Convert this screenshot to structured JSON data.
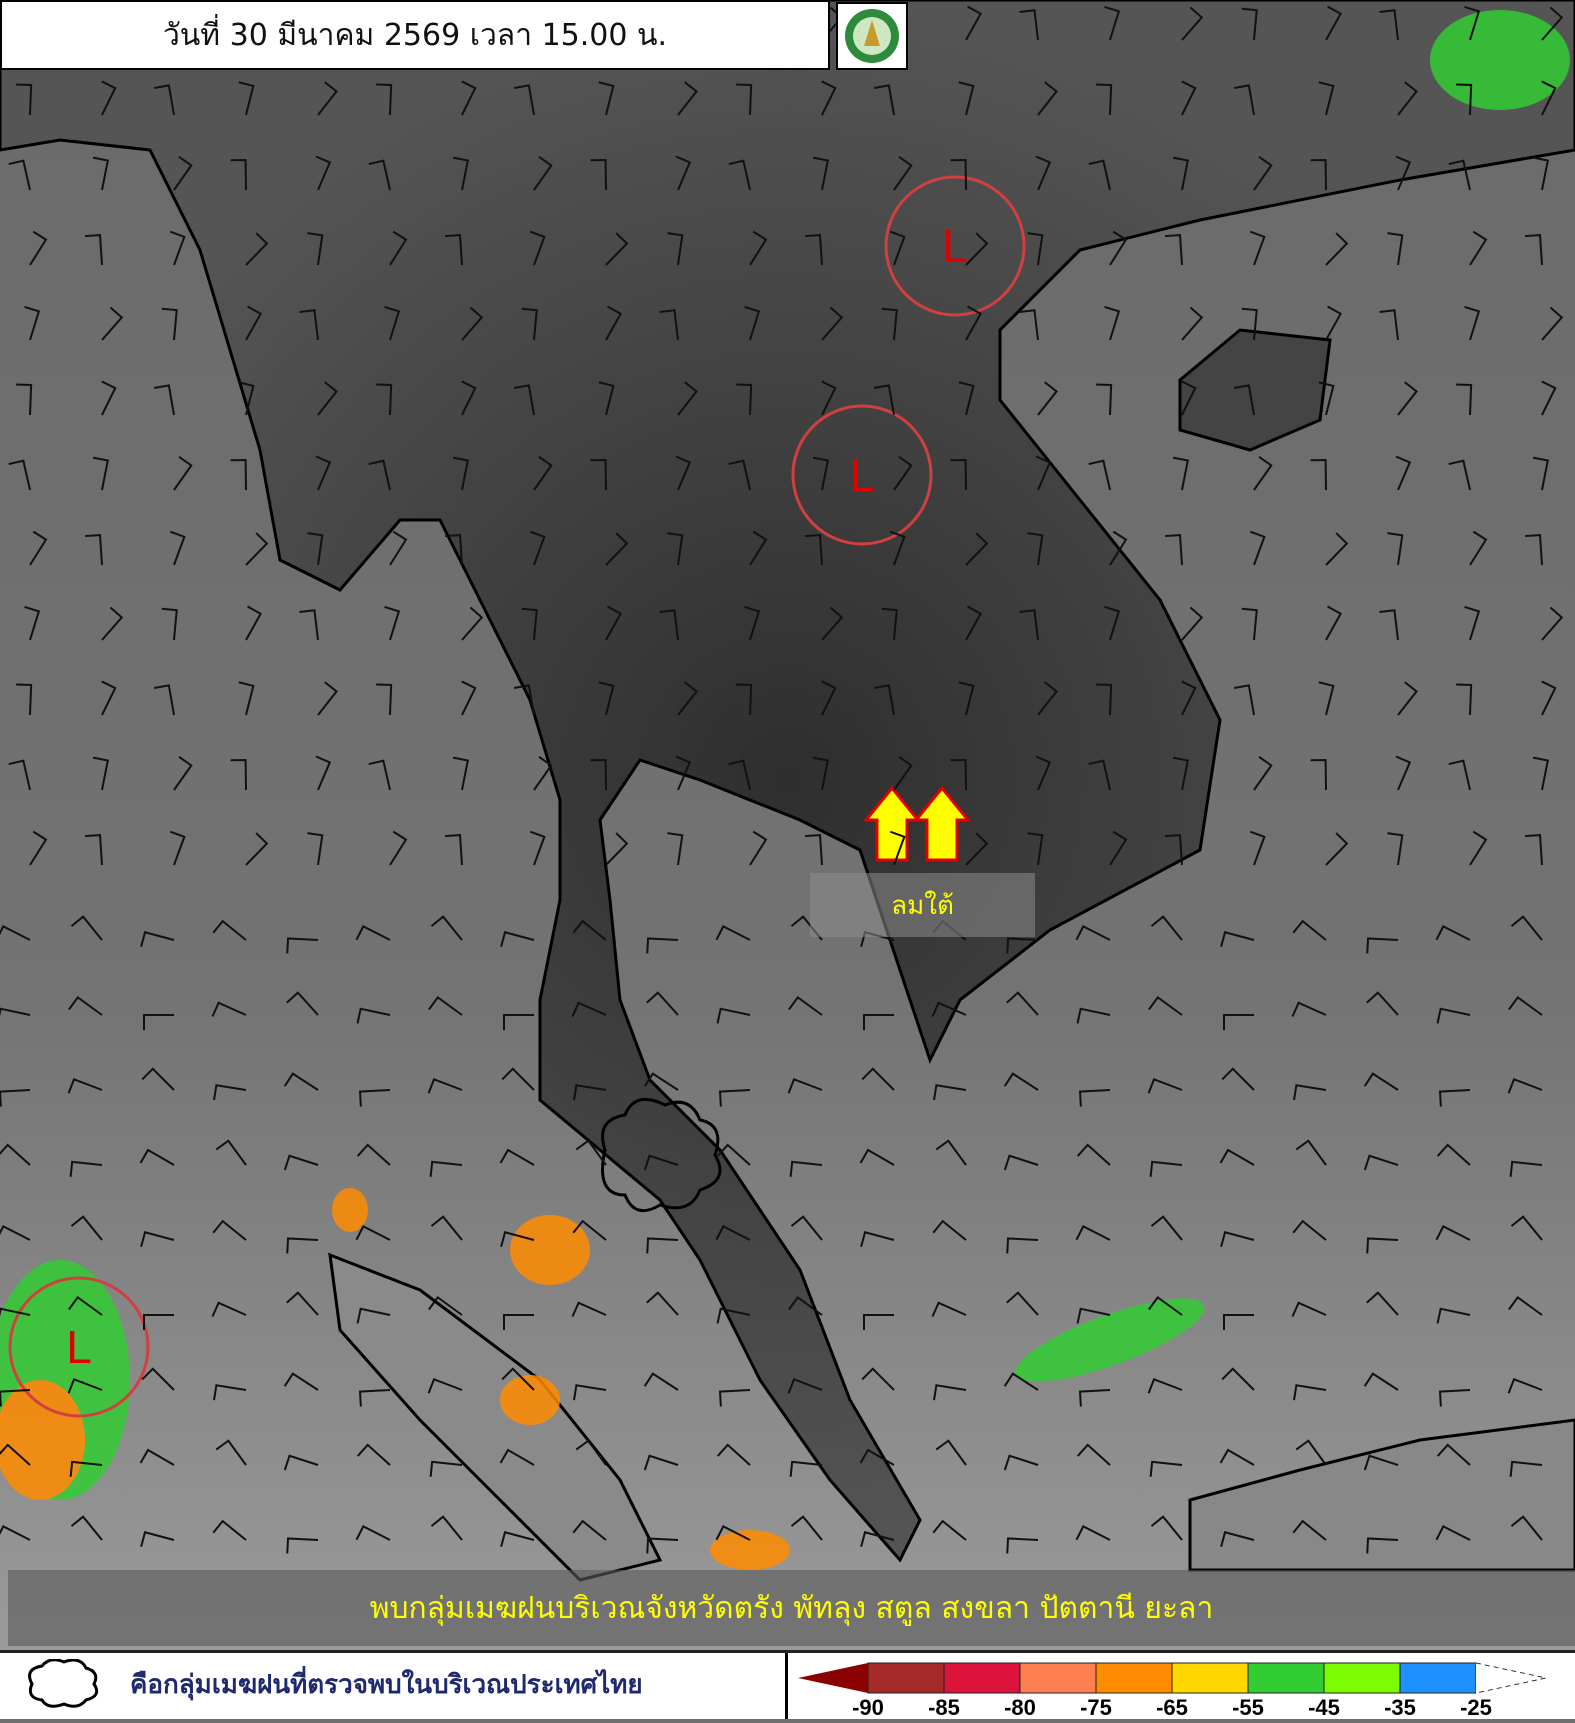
{
  "header": {
    "title": "วันที่ 30 มีนาคม 2569 เวลา 15.00 น."
  },
  "logo": {
    "icon": "tmd-logo"
  },
  "map": {
    "low_pressure_label": "L",
    "low_pressure_count": 3,
    "wind_annotation": "ลมใต้",
    "arrow_color": "#ffff00"
  },
  "caption": {
    "text": "พบกลุ่มเมฆฝนบริเวณจังหวัดตรัง พัทลุง สตูล สงขลา ปัตตานี ยะลา"
  },
  "legend": {
    "cloud_note": "คือกลุ่มเมฆฝนที่ตรวจพบในบริเวณประเทศไทย",
    "scale_labels": [
      "-90",
      "-85",
      "-80",
      "-75",
      "-65",
      "-55",
      "-45",
      "-35",
      "-25"
    ],
    "scale_colors": [
      "#8b0000",
      "#a52a2a",
      "#dc143c",
      "#ff7f50",
      "#ff8c00",
      "#ffd700",
      "#32cd32",
      "#7cfc00",
      "#1e90ff"
    ]
  }
}
